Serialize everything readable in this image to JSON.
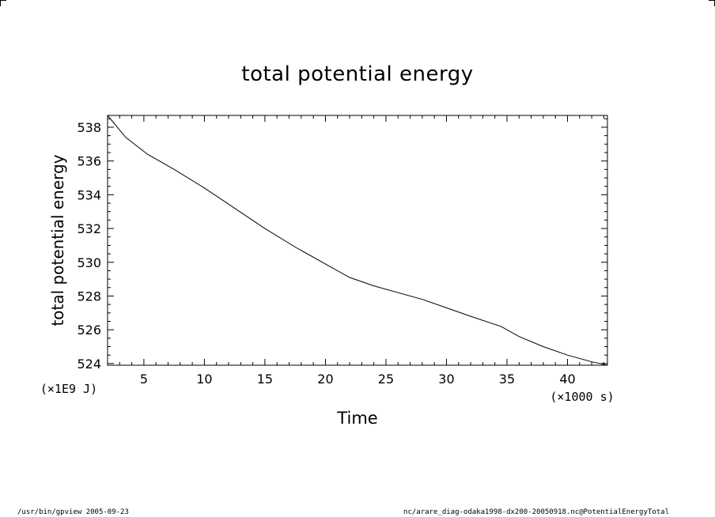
{
  "footer": {
    "left": "/usr/bin/gpview   2005-09-23",
    "right": "nc/arare_diag-odaka1998-dx200-20050918.nc@PotentialEnergyTotal"
  },
  "chart_data": {
    "type": "line",
    "title": "total potential energy",
    "xlabel": "Time",
    "ylabel": "total potential energy",
    "x_unit_label": "(×1000 s)",
    "y_unit_label": "(×1E9 J)",
    "xlim": [
      2,
      43.3
    ],
    "ylim": [
      523.9,
      538.7
    ],
    "xticks": [
      5,
      10,
      15,
      20,
      25,
      30,
      35,
      40
    ],
    "yticks": [
      524,
      526,
      528,
      530,
      532,
      534,
      536,
      538
    ],
    "grid": false,
    "series": [
      {
        "x": [
          2,
          3.5,
          5.3,
          7.5,
          10,
          12.5,
          15,
          17.5,
          20,
          22,
          24,
          26,
          28,
          30,
          32,
          34.5,
          36,
          38,
          40,
          42,
          43.3
        ],
        "y": [
          538.7,
          537.4,
          536.4,
          535.5,
          534.4,
          533.2,
          532.0,
          530.9,
          529.9,
          529.1,
          528.6,
          528.2,
          527.8,
          527.3,
          526.8,
          526.2,
          525.6,
          525.0,
          524.5,
          524.1,
          523.9
        ]
      }
    ]
  }
}
